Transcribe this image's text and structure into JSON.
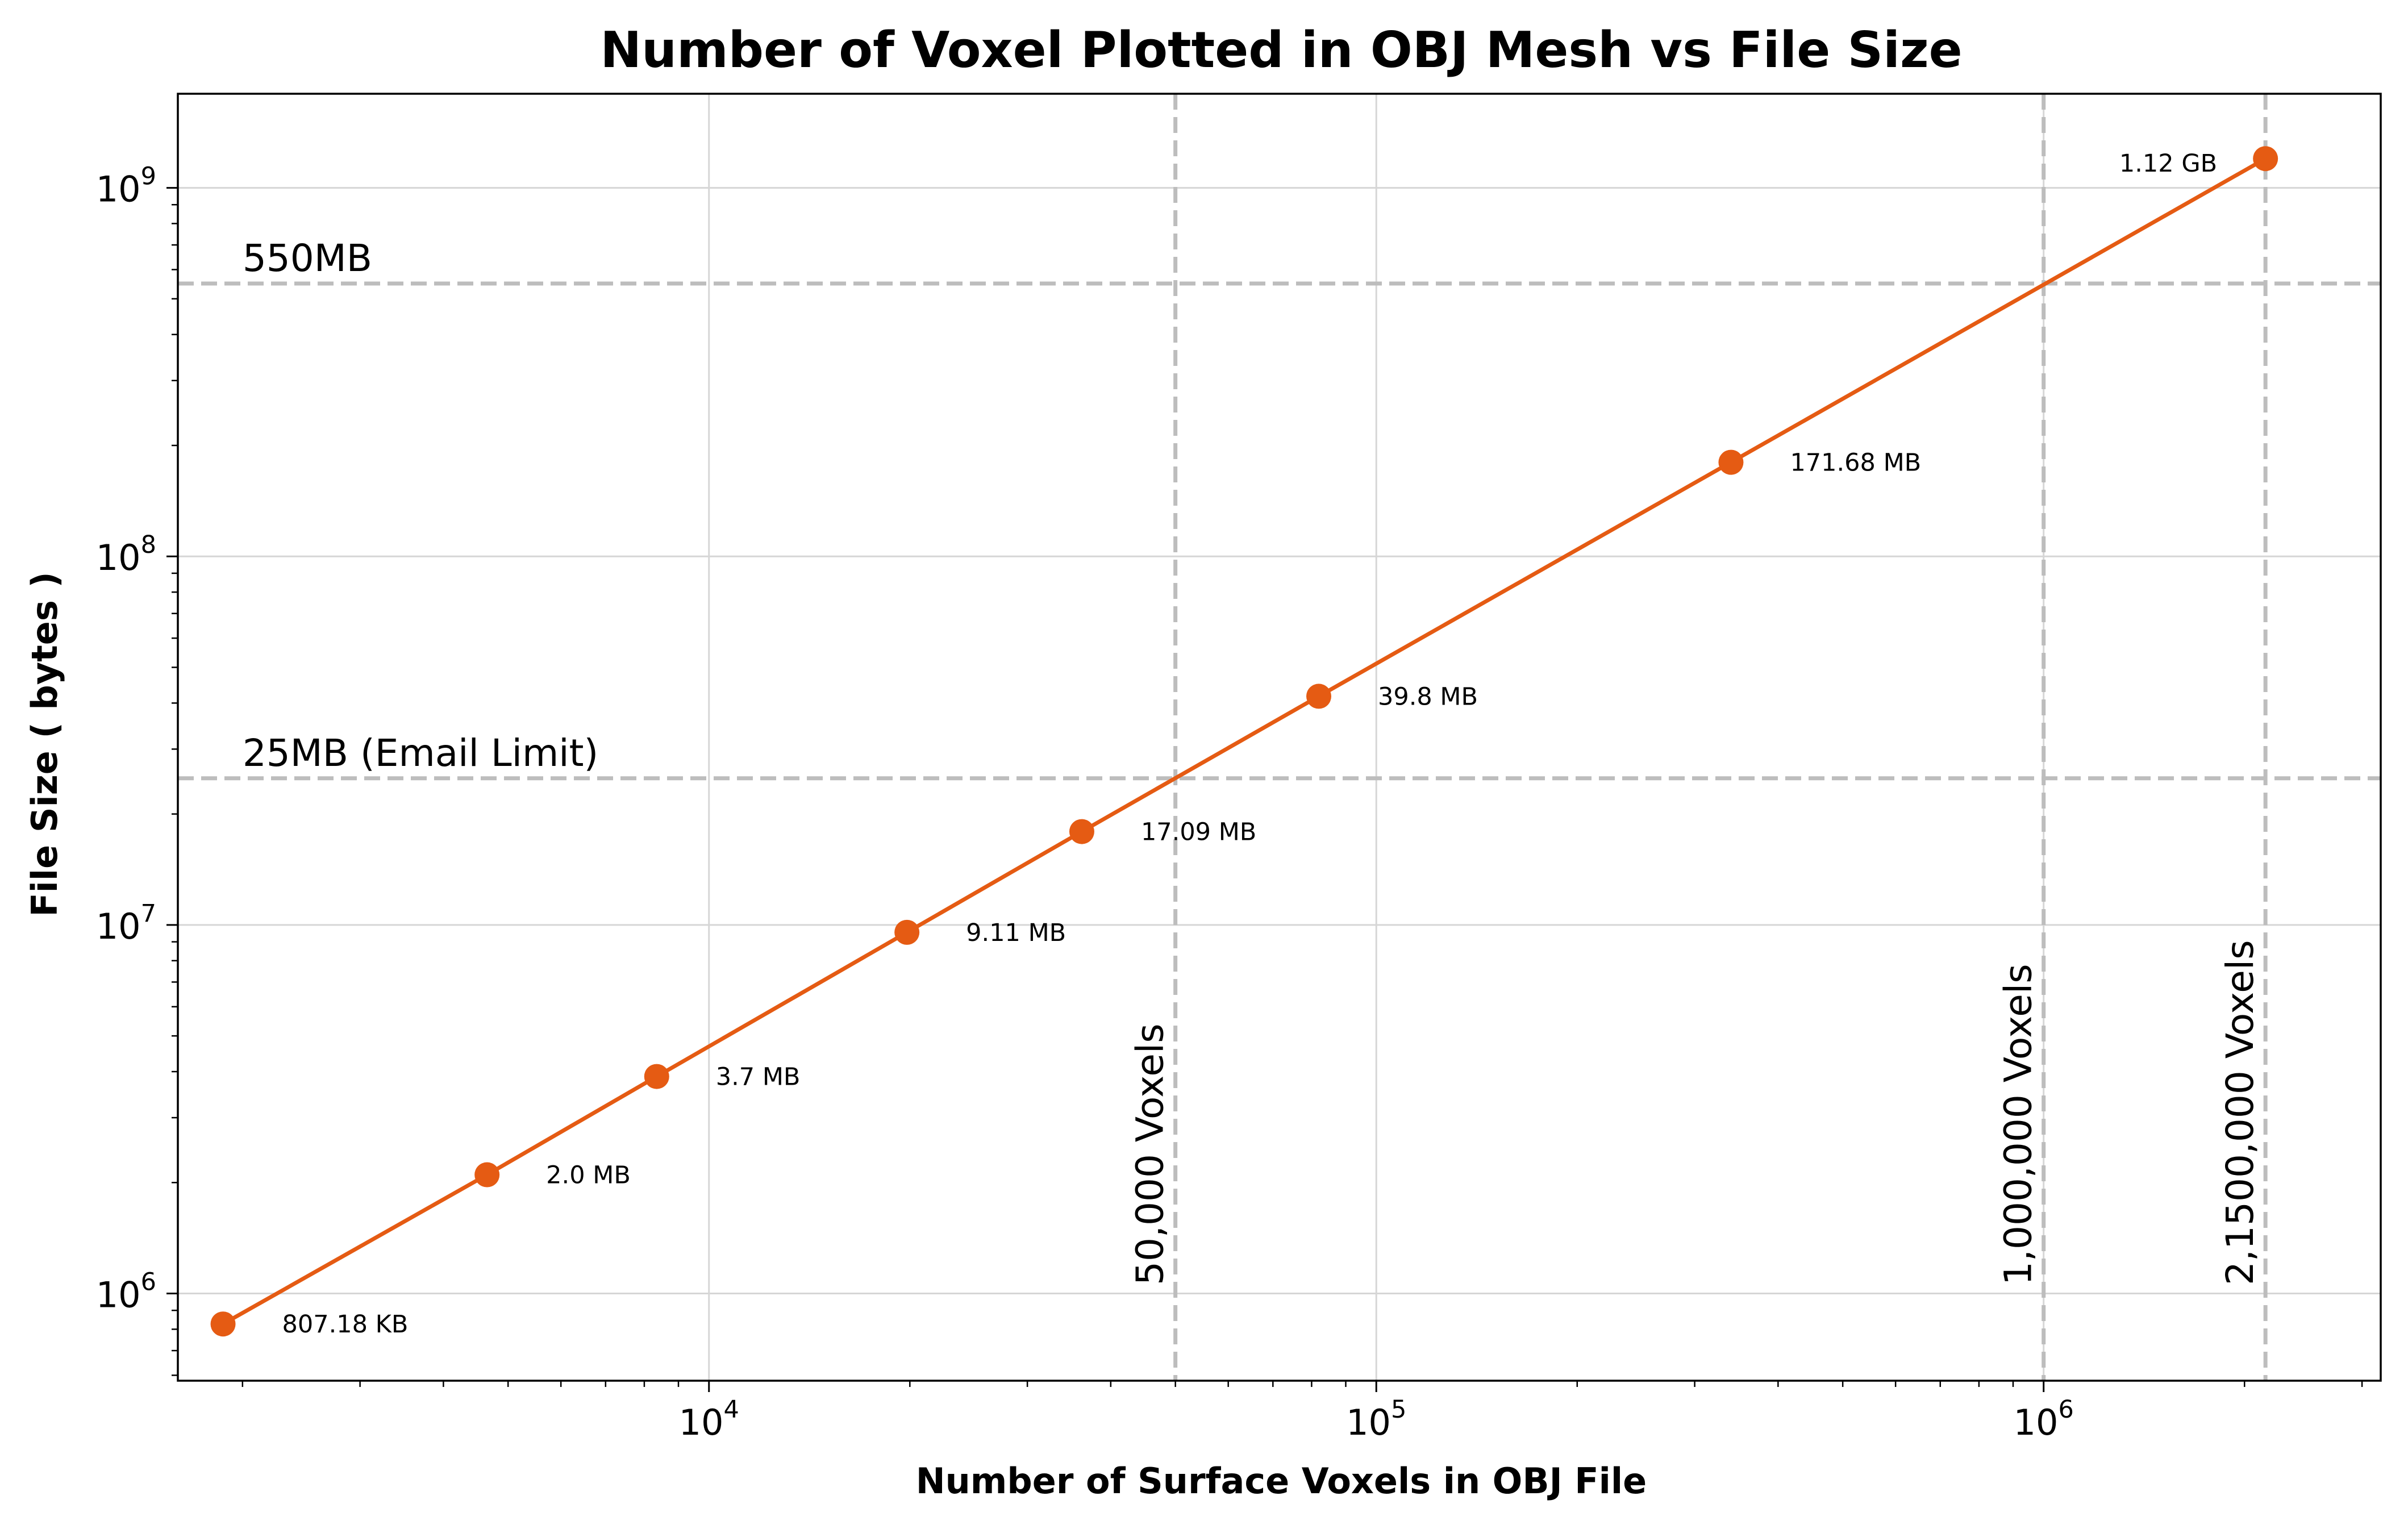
{
  "chart_data": {
    "type": "line",
    "title": "Number of Voxel Plotted in OBJ Mesh vs File Size",
    "xlabel": "Number of Surface Voxels in OBJ File",
    "ylabel": "File Size ( bytes )",
    "xscale": "log",
    "yscale": "log",
    "xlim": [
      1600,
      3200000
    ],
    "ylim": [
      580000,
      1800000000
    ],
    "grid": true,
    "x_ticks": [
      {
        "value": 10000,
        "base": "10",
        "exp": "4"
      },
      {
        "value": 100000,
        "base": "10",
        "exp": "5"
      },
      {
        "value": 1000000,
        "base": "10",
        "exp": "6"
      }
    ],
    "y_ticks": [
      {
        "value": 1000000,
        "base": "10",
        "exp": "6"
      },
      {
        "value": 10000000,
        "base": "10",
        "exp": "7"
      },
      {
        "value": 100000000,
        "base": "10",
        "exp": "8"
      },
      {
        "value": 1000000000,
        "base": "10",
        "exp": "9"
      }
    ],
    "series": [
      {
        "color": "#e55b13",
        "x": [
          1870,
          4650,
          8350,
          19800,
          36200,
          82000,
          340000,
          2150000
        ],
        "y": [
          826550,
          2100000,
          3880000,
          9550000,
          17920000,
          41730000,
          180020000,
          1200000000
        ],
        "labels": [
          "807.18 KB",
          "2.0 MB",
          "3.7 MB",
          "9.11 MB",
          "17.09 MB",
          "39.8 MB",
          "171.68 MB",
          "1.12 GB"
        ]
      }
    ],
    "reference_lines": {
      "horizontal": [
        {
          "value": 550000000,
          "label": "550MB"
        },
        {
          "value": 25000000,
          "label": "25MB (Email Limit)"
        }
      ],
      "vertical": [
        {
          "value": 50000,
          "label": "50,000 Voxels"
        },
        {
          "value": 1000000,
          "label": "1,000,000 Voxels"
        },
        {
          "value": 2150000,
          "label": "2,1500,000 Voxels"
        }
      ],
      "color": "#bdbdbd"
    }
  }
}
